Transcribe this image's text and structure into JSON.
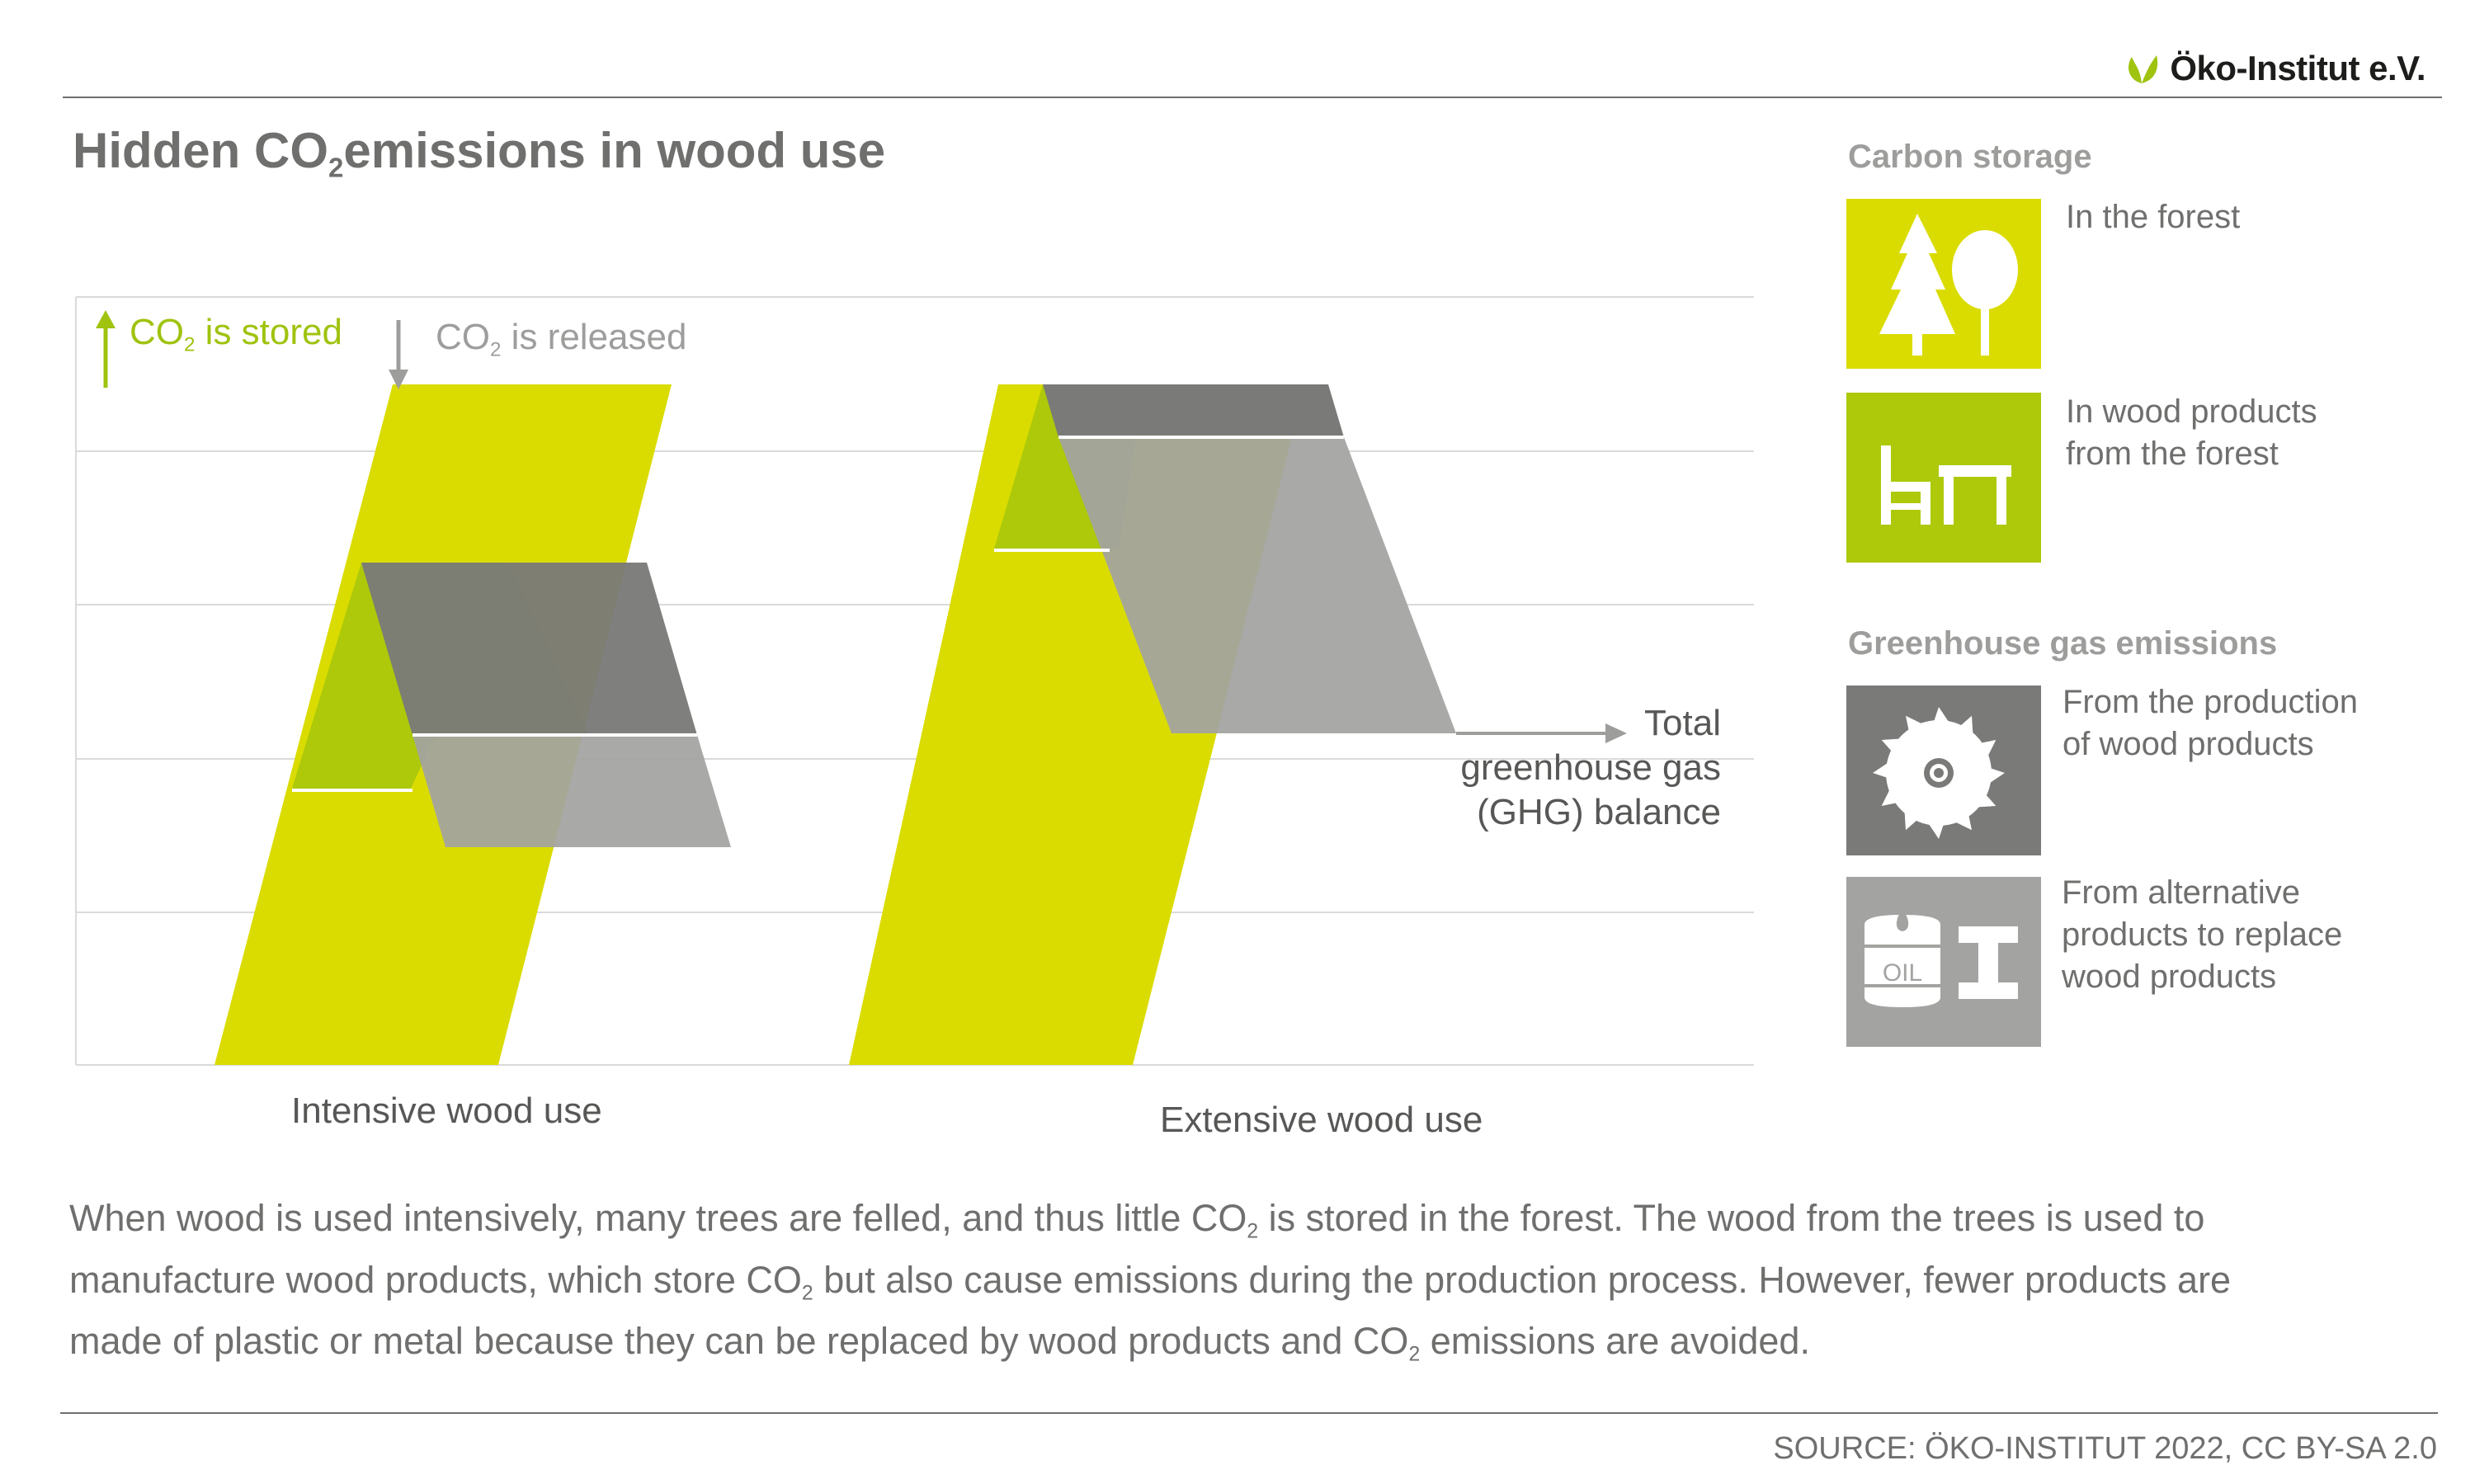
{
  "header": {
    "brand": "Öko-Institut e.V.",
    "title_pre": "Hidden CO",
    "title_sub": "2",
    "title_post": "emissions in wood use"
  },
  "diagram": {
    "key_stored_pre": "CO",
    "key_stored_sub": "2",
    "key_stored_post": " is stored",
    "key_released_pre": "CO",
    "key_released_sub": "2",
    "key_released_post": " is released",
    "balance_line1": "Total",
    "balance_line2": "greenhouse gas",
    "balance_line3": "(GHG) balance",
    "categories": [
      "Intensive wood use",
      "Extensive wood use"
    ]
  },
  "legend": {
    "carbon_heading": "Carbon storage",
    "forest_line1": "In the forest",
    "products_line1": "In wood products",
    "products_line2": "from the forest",
    "ghg_heading": "Greenhouse gas emissions",
    "production_line1": "From the production",
    "production_line2": "of wood products",
    "alternative_line1": "From alternative",
    "alternative_line2": "products to replace",
    "alternative_line3": "wood products",
    "oil_label": "OIL"
  },
  "caption": {
    "l1_pre": "When wood is used intensively, many trees are felled, and thus little CO",
    "l1_sub": "2",
    "l1_post": " is stored in the forest. The wood from the trees is used to",
    "l2_pre": "manufacture wood products, which store CO",
    "l2_sub": "2",
    "l2_post": " but also cause emissions during the production process. However, fewer products are",
    "l3_pre": "made of plastic or metal because they can be replaced by wood products and CO",
    "l3_sub": "2",
    "l3_post": " emissions are avoided."
  },
  "footer": {
    "source": "SOURCE: ÖKO-INSTITUT 2022, CC BY-SA 2.0"
  },
  "colors": {
    "forest_yellow": "#dadc00",
    "product_green": "#adc90a",
    "production_grey": "#7a7a78",
    "alternative_grey": "#a3a3a1",
    "text_grey": "#6f6f6e"
  }
}
